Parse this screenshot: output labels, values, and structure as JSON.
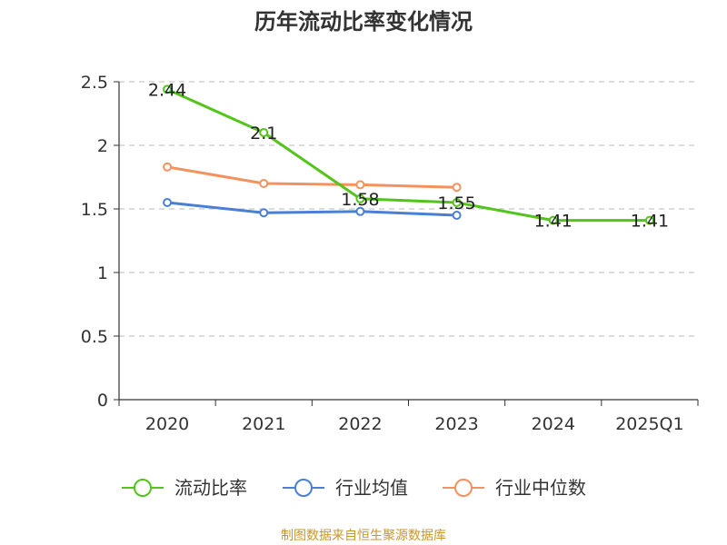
{
  "chart_data": {
    "type": "line",
    "title": "历年流动比率变化情况",
    "categories": [
      "2020",
      "2021",
      "2022",
      "2023",
      "2024",
      "2025Q1"
    ],
    "y_ticks": [
      "0",
      "0.5",
      "1",
      "1.5",
      "2",
      "2.5"
    ],
    "ylim": [
      0,
      2.5
    ],
    "grid": true,
    "legend_position": "bottom",
    "series": [
      {
        "name": "流动比率",
        "color": "#52c41a",
        "values": [
          2.44,
          2.1,
          1.58,
          1.55,
          1.41,
          1.41
        ],
        "labels": [
          "2.44",
          "2.1",
          "1.58",
          "1.55",
          "1.41",
          "1.41"
        ]
      },
      {
        "name": "行业均值",
        "color": "#4a7fd6",
        "values": [
          1.55,
          1.47,
          1.48,
          1.45,
          null,
          null
        ]
      },
      {
        "name": "行业中位数",
        "color": "#f4925e",
        "values": [
          1.83,
          1.7,
          1.69,
          1.67,
          null,
          null
        ]
      }
    ],
    "source": "制图数据来自恒生聚源数据库"
  }
}
